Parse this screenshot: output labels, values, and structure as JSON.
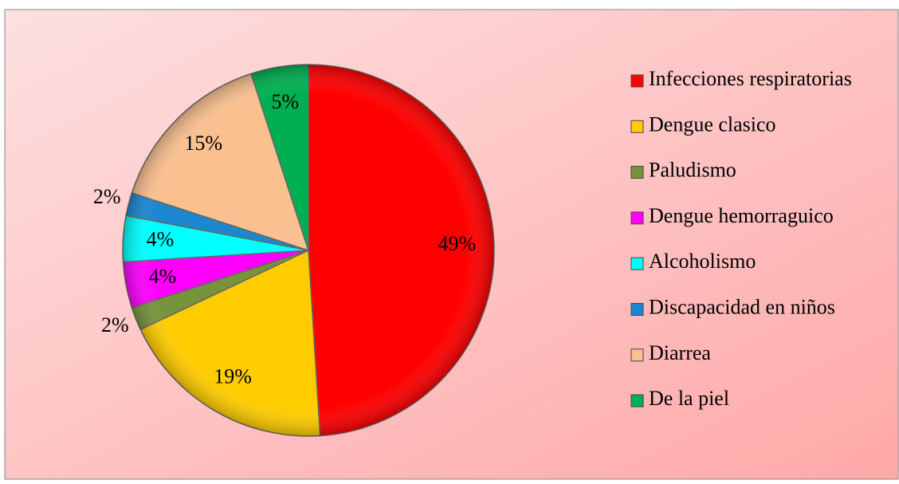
{
  "chart_data": {
    "type": "pie",
    "categories": [
      "Infecciones respiratorias",
      "Dengue clasico",
      "Paludismo",
      "Dengue hemorraguico",
      "Alcoholismo",
      "Discapacidad en niños",
      "Diarrea",
      "De la piel"
    ],
    "values": [
      49,
      19,
      2,
      4,
      4,
      2,
      15,
      5
    ],
    "value_labels": [
      "49%",
      "19%",
      "2%",
      "4%",
      "4%",
      "2%",
      "15%",
      "5%"
    ],
    "colors": [
      "#ff0000",
      "#ffcc00",
      "#77933c",
      "#ff00ff",
      "#00ffff",
      "#1b87d0",
      "#fac090",
      "#00b050"
    ],
    "legend": "right"
  }
}
